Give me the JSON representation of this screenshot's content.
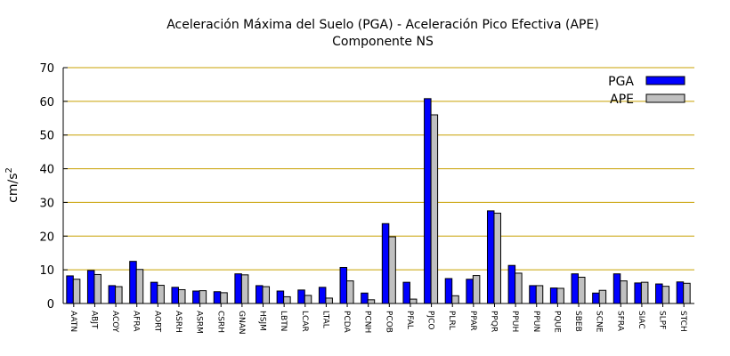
{
  "chart_data": {
    "type": "bar",
    "title_line1": "Aceleración Máxima del Suelo (PGA) -   Aceleración Pico Efectiva (APE)",
    "title_line2": "Componente NS",
    "ylabel_base": "cm/s",
    "ylabel_sup": "2",
    "ylim": [
      0,
      70
    ],
    "yticks": [
      0,
      10,
      20,
      30,
      40,
      50,
      60,
      70
    ],
    "grid": "horizontal",
    "legend_position": "top-right",
    "categories": [
      "AATN",
      "ABJT",
      "ACOY",
      "AFRA",
      "AORT",
      "ASRH",
      "ASRM",
      "CSRH",
      "GNAN",
      "HSJM",
      "LBTN",
      "LCAR",
      "LTAL",
      "PCDA",
      "PCNH",
      "PCOB",
      "PFAL",
      "PJCO",
      "PLRL",
      "PPAR",
      "PPQR",
      "PPUH",
      "PPUN",
      "PQUE",
      "SBEB",
      "SCNE",
      "SFRA",
      "SIAC",
      "SLPF",
      "STCH"
    ],
    "series": [
      {
        "name": "PGA",
        "color": "#0000ff",
        "values": [
          8.2,
          9.8,
          5.3,
          12.5,
          6.3,
          4.8,
          3.7,
          3.5,
          8.8,
          5.3,
          3.7,
          4.0,
          4.8,
          10.7,
          3.1,
          23.7,
          6.3,
          60.8,
          7.4,
          7.2,
          27.5,
          11.3,
          5.3,
          4.6,
          8.8,
          3.1,
          8.8,
          6.1,
          5.8,
          6.4
        ]
      },
      {
        "name": "APE",
        "color": "#c0c0c0",
        "values": [
          7.2,
          8.6,
          5.0,
          10.1,
          5.4,
          4.1,
          3.8,
          3.2,
          8.5,
          5.0,
          2.0,
          2.4,
          1.6,
          6.7,
          1.1,
          19.8,
          1.3,
          56.0,
          2.3,
          8.3,
          26.8,
          9.0,
          5.3,
          4.5,
          7.8,
          3.9,
          6.7,
          6.3,
          5.1,
          6.0
        ]
      }
    ]
  }
}
